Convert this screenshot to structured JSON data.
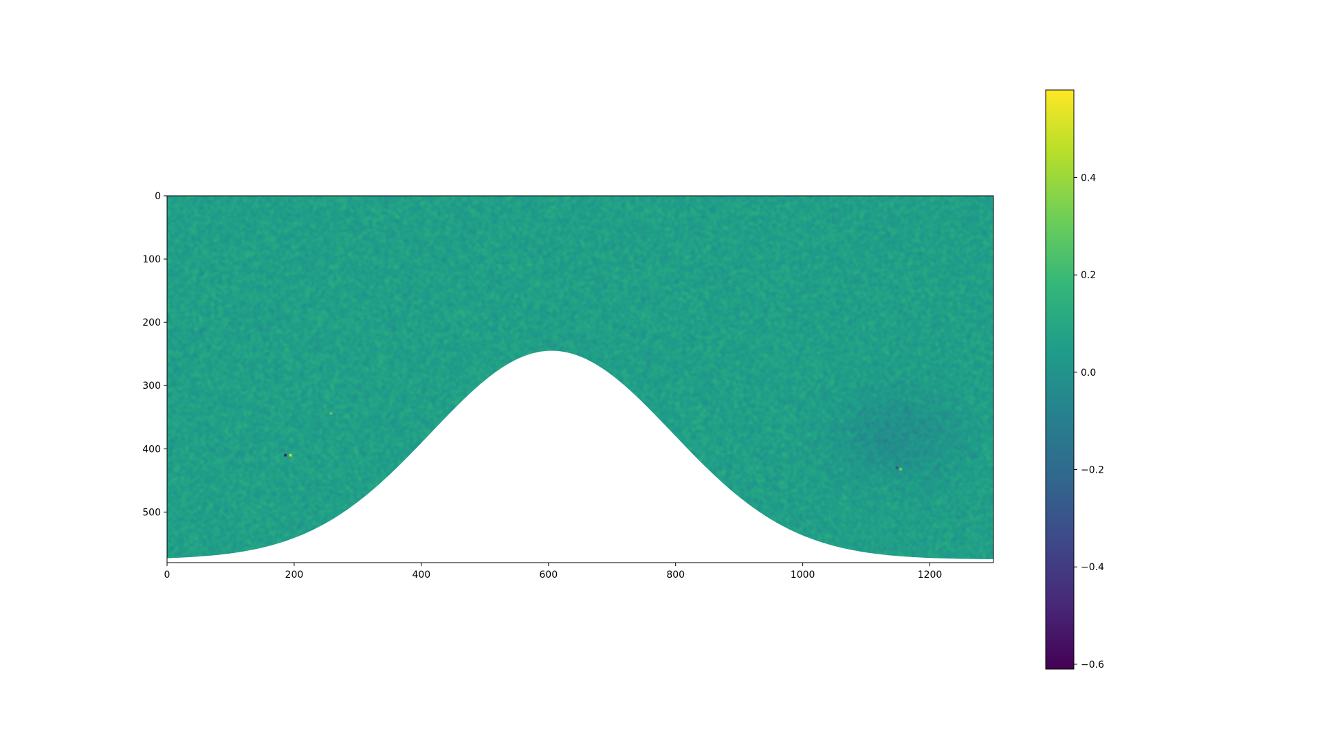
{
  "chart_data": {
    "type": "heatmap",
    "title": "",
    "xlabel": "",
    "ylabel": "",
    "colormap": "viridis",
    "image_shape": [
      580,
      1300
    ],
    "xlim": [
      0,
      1300
    ],
    "ylim": [
      580,
      0
    ],
    "y_axis_inverted": true,
    "x_ticks": [
      0,
      200,
      400,
      600,
      800,
      1000,
      1200
    ],
    "x_tick_labels": [
      "0",
      "200",
      "400",
      "600",
      "800",
      "1000",
      "1200"
    ],
    "y_ticks": [
      0,
      100,
      200,
      300,
      400,
      500
    ],
    "y_tick_labels": [
      "0",
      "100",
      "200",
      "300",
      "400",
      "500"
    ],
    "value_range": [
      -0.61,
      0.58
    ],
    "masked_region": {
      "description_shape": "bell",
      "peak_x": 605,
      "peak_y": 245,
      "edge_y": 575,
      "sigma": 190
    },
    "notable_points": [
      {
        "x": 186,
        "y": 410,
        "value": -0.55
      },
      {
        "x": 193,
        "y": 410,
        "value": 0.5
      },
      {
        "x": 1148,
        "y": 430,
        "value": -0.35
      },
      {
        "x": 1153,
        "y": 432,
        "value": 0.35
      },
      {
        "x": 258,
        "y": 343,
        "value": 0.3
      }
    ],
    "colorbar": {
      "min": -0.61,
      "max": 0.58,
      "ticks": [
        -0.6,
        -0.4,
        -0.2,
        0.0,
        0.2,
        0.4
      ],
      "tick_labels": [
        "−0.6",
        "−0.4",
        "−0.2",
        "0.0",
        "0.2",
        "0.4"
      ]
    },
    "grid": false,
    "legend": "none"
  },
  "colors": {
    "viridis": [
      "#440154",
      "#482878",
      "#3e4989",
      "#31688e",
      "#26828e",
      "#1f9e89",
      "#35b779",
      "#6ece58",
      "#b5de2b",
      "#fde725"
    ],
    "axis": "#000000",
    "background": "#ffffff"
  }
}
